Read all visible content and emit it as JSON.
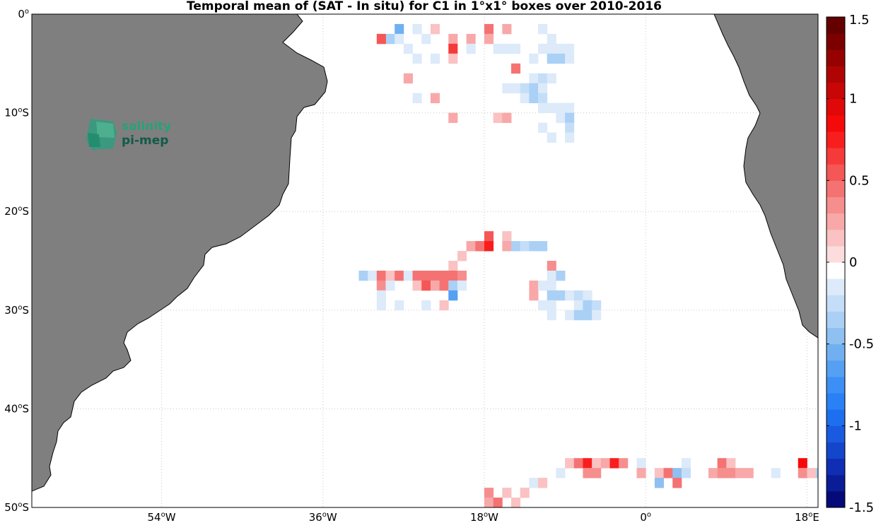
{
  "title": "Temporal mean of (SAT - In situ) for C1 in 1°x1° boxes over 2010-2016",
  "logo": {
    "line1": "salinity",
    "line2": "pi-mep"
  },
  "axes": {
    "lon_ticks": [
      {
        "value": -54,
        "deg": "54",
        "dir": "W"
      },
      {
        "value": -36,
        "deg": "36",
        "dir": "W"
      },
      {
        "value": -18,
        "deg": "18",
        "dir": "W"
      },
      {
        "value": 0,
        "deg": "0",
        "dir": ""
      },
      {
        "value": 18,
        "deg": "18",
        "dir": "E"
      }
    ],
    "lat_ticks": [
      {
        "value": 0,
        "deg": "0",
        "dir": ""
      },
      {
        "value": -10,
        "deg": "10",
        "dir": "S"
      },
      {
        "value": -20,
        "deg": "20",
        "dir": "S"
      },
      {
        "value": -30,
        "deg": "30",
        "dir": "S"
      },
      {
        "value": -40,
        "deg": "40",
        "dir": "S"
      },
      {
        "value": -50,
        "deg": "50",
        "dir": "S"
      }
    ],
    "lon_range": [
      -72,
      20
    ],
    "lat_range": [
      -50,
      0
    ]
  },
  "colorbar": {
    "range": [
      -1.5,
      1.5
    ],
    "ticks": [
      {
        "value": 1.5,
        "label": "1.5"
      },
      {
        "value": 1,
        "label": "1"
      },
      {
        "value": 0.5,
        "label": "0.5"
      },
      {
        "value": 0,
        "label": "0"
      },
      {
        "value": -0.5,
        "label": "-0.5"
      },
      {
        "value": -1,
        "label": "-1"
      },
      {
        "value": -1.5,
        "label": "-1.5"
      }
    ],
    "colors": [
      "#050a78",
      "#0a1c96",
      "#0f2eb4",
      "#1446cc",
      "#1a5ae0",
      "#1e6ef0",
      "#2a80f5",
      "#3c90f5",
      "#55a0f2",
      "#70b0f0",
      "#8ec0f2",
      "#aad0f5",
      "#c4def8",
      "#dceafa",
      "#ffffff",
      "#fcdcdc",
      "#fac2c2",
      "#f8a8a8",
      "#f68e8e",
      "#f57272",
      "#f55656",
      "#f63a3a",
      "#f81e1e",
      "#f50a0a",
      "#e00808",
      "#c80606",
      "#b00404",
      "#960202",
      "#7c0000",
      "#640000"
    ]
  },
  "chart_data": {
    "type": "heatmap",
    "title": "Temporal mean of (SAT - In situ) for C1 in 1°x1° boxes over 2010-2016",
    "grid": "dotted",
    "colorbar_range": [
      -1.5,
      1.5
    ],
    "cell_size_deg": 1,
    "cells": [
      [
        -29,
        -2,
        -0.35
      ],
      [
        -28,
        -1,
        -0.55
      ],
      [
        -26,
        -1,
        -0.15
      ],
      [
        -24,
        -1,
        0.15
      ],
      [
        -18,
        -1,
        0.4
      ],
      [
        -16,
        -1,
        0.2
      ],
      [
        -12,
        -1,
        -0.1
      ],
      [
        -30,
        -2,
        0.5
      ],
      [
        -28,
        -2,
        -0.15
      ],
      [
        -25,
        -2,
        -0.1
      ],
      [
        -22,
        -2,
        0.2
      ],
      [
        -20,
        -2,
        0.25
      ],
      [
        -18,
        -2,
        0.2
      ],
      [
        -11,
        -2,
        -0.15
      ],
      [
        -27,
        -3,
        -0.15
      ],
      [
        -22,
        -3,
        0.6
      ],
      [
        -20,
        -3,
        -0.1
      ],
      [
        -17,
        -3,
        -0.1
      ],
      [
        -16,
        -3,
        -0.1
      ],
      [
        -15,
        -3,
        -0.1
      ],
      [
        -12,
        -3,
        -0.15
      ],
      [
        -11,
        -3,
        -0.2
      ],
      [
        -10,
        -3,
        -0.2
      ],
      [
        -9,
        -3,
        -0.1
      ],
      [
        -26,
        -4,
        -0.2
      ],
      [
        -24,
        -4,
        -0.1
      ],
      [
        -22,
        -4,
        0.15
      ],
      [
        -13,
        -4,
        -0.2
      ],
      [
        -11,
        -4,
        -0.3
      ],
      [
        -10,
        -4,
        -0.35
      ],
      [
        -9,
        -4,
        -0.15
      ],
      [
        -15,
        -5,
        0.4
      ],
      [
        -27,
        -6,
        0.2
      ],
      [
        -13,
        -6,
        -0.2
      ],
      [
        -12,
        -6,
        -0.25
      ],
      [
        -11,
        -6,
        -0.2
      ],
      [
        -16,
        -7,
        -0.1
      ],
      [
        -15,
        -7,
        -0.2
      ],
      [
        -14,
        -7,
        -0.25
      ],
      [
        -13,
        -7,
        -0.4
      ],
      [
        -12,
        -7,
        -0.2
      ],
      [
        -26,
        -8,
        -0.15
      ],
      [
        -24,
        -8,
        0.2
      ],
      [
        -14,
        -8,
        -0.15
      ],
      [
        -13,
        -8,
        -0.35
      ],
      [
        -12,
        -8,
        -0.25
      ],
      [
        -12,
        -9,
        -0.15
      ],
      [
        -11,
        -9,
        -0.15
      ],
      [
        -10,
        -9,
        -0.15
      ],
      [
        -9,
        -9,
        -0.15
      ],
      [
        -22,
        -10,
        0.2
      ],
      [
        -17,
        -10,
        0.15
      ],
      [
        -16,
        -10,
        0.25
      ],
      [
        -10,
        -10,
        -0.1
      ],
      [
        -9,
        -10,
        -0.3
      ],
      [
        -12,
        -11,
        -0.15
      ],
      [
        -9,
        -11,
        -0.25
      ],
      [
        -11,
        -12,
        -0.2
      ],
      [
        -9,
        -12,
        -0.2
      ],
      [
        -18,
        -22,
        0.55
      ],
      [
        -16,
        -22,
        0.15
      ],
      [
        -20,
        -23,
        0.2
      ],
      [
        -19,
        -23,
        0.4
      ],
      [
        -18,
        -23,
        0.75
      ],
      [
        -16,
        -23,
        0.2
      ],
      [
        -15,
        -23,
        -0.3
      ],
      [
        -14,
        -23,
        -0.25
      ],
      [
        -13,
        -23,
        -0.4
      ],
      [
        -12,
        -23,
        -0.3
      ],
      [
        -21,
        -24,
        0.15
      ],
      [
        -22,
        -25,
        0.15
      ],
      [
        -11,
        -25,
        0.35
      ],
      [
        -32,
        -26,
        -0.35
      ],
      [
        -31,
        -26,
        -0.15
      ],
      [
        -30,
        -26,
        0.45
      ],
      [
        -29,
        -26,
        0.15
      ],
      [
        -28,
        -26,
        0.45
      ],
      [
        -27,
        -26,
        -0.2
      ],
      [
        -26,
        -26,
        0.4
      ],
      [
        -25,
        -26,
        0.4
      ],
      [
        -24,
        -26,
        0.4
      ],
      [
        -23,
        -26,
        0.4
      ],
      [
        -22,
        -26,
        0.4
      ],
      [
        -21,
        -26,
        0.3
      ],
      [
        -11,
        -26,
        -0.1
      ],
      [
        -10,
        -26,
        -0.35
      ],
      [
        -30,
        -27,
        0.35
      ],
      [
        -29,
        -27,
        -0.1
      ],
      [
        -26,
        -27,
        0.15
      ],
      [
        -25,
        -27,
        0.55
      ],
      [
        -24,
        -27,
        0.2
      ],
      [
        -23,
        -27,
        0.4
      ],
      [
        -22,
        -27,
        -0.35
      ],
      [
        -21,
        -27,
        -0.1
      ],
      [
        -13,
        -27,
        0.2
      ],
      [
        -12,
        -27,
        -0.15
      ],
      [
        -11,
        -27,
        -0.1
      ],
      [
        -30,
        -28,
        -0.2
      ],
      [
        -22,
        -28,
        -0.7
      ],
      [
        -13,
        -28,
        0.2
      ],
      [
        -11,
        -28,
        -0.3
      ],
      [
        -10,
        -28,
        -0.3
      ],
      [
        -9,
        -28,
        -0.15
      ],
      [
        -8,
        -28,
        -0.25
      ],
      [
        -7,
        -28,
        -0.15
      ],
      [
        -30,
        -29,
        -0.2
      ],
      [
        -28,
        -29,
        -0.15
      ],
      [
        -25,
        -29,
        -0.15
      ],
      [
        -23,
        -29,
        0.15
      ],
      [
        -12,
        -29,
        -0.15
      ],
      [
        -11,
        -29,
        -0.1
      ],
      [
        -8,
        -29,
        -0.15
      ],
      [
        -7,
        -29,
        -0.3
      ],
      [
        -6,
        -29,
        -0.25
      ],
      [
        -11,
        -30,
        -0.2
      ],
      [
        -9,
        -30,
        -0.15
      ],
      [
        -8,
        -30,
        -0.35
      ],
      [
        -7,
        -30,
        -0.3
      ],
      [
        -6,
        -30,
        -0.1
      ],
      [
        -9,
        -45,
        0.15
      ],
      [
        -8,
        -45,
        0.4
      ],
      [
        -7,
        -45,
        0.7
      ],
      [
        -6,
        -45,
        0.15
      ],
      [
        -5,
        -45,
        0.2
      ],
      [
        -4,
        -45,
        0.7
      ],
      [
        -3,
        -45,
        0.35
      ],
      [
        -1,
        -45,
        -0.15
      ],
      [
        4,
        -45,
        -0.1
      ],
      [
        8,
        -45,
        0.45
      ],
      [
        9,
        -45,
        0.15
      ],
      [
        17,
        -45,
        0.85
      ],
      [
        -10,
        -46,
        -0.15
      ],
      [
        -7,
        -46,
        0.3
      ],
      [
        -6,
        -46,
        0.3
      ],
      [
        -1,
        -46,
        0.2
      ],
      [
        1,
        -46,
        0.15
      ],
      [
        2,
        -46,
        0.4
      ],
      [
        3,
        -46,
        -0.45
      ],
      [
        4,
        -46,
        -0.25
      ],
      [
        7,
        -46,
        0.2
      ],
      [
        8,
        -46,
        0.35
      ],
      [
        9,
        -46,
        0.35
      ],
      [
        10,
        -46,
        0.25
      ],
      [
        11,
        -46,
        0.25
      ],
      [
        14,
        -46,
        -0.1
      ],
      [
        17,
        -46,
        0.3
      ],
      [
        18,
        -46,
        0.15
      ],
      [
        19,
        -46,
        -0.3
      ],
      [
        -13,
        -47,
        -0.15
      ],
      [
        -12,
        -47,
        0.15
      ],
      [
        1,
        -47,
        -0.45
      ],
      [
        3,
        -47,
        0.4
      ],
      [
        -18,
        -48,
        0.35
      ],
      [
        -16,
        -48,
        0.15
      ],
      [
        -14,
        -48,
        0.15
      ],
      [
        -18,
        -49,
        0.25
      ],
      [
        -17,
        -49,
        0.45
      ],
      [
        -15,
        -49,
        0.15
      ],
      [
        -18,
        -50,
        0.3
      ]
    ]
  }
}
